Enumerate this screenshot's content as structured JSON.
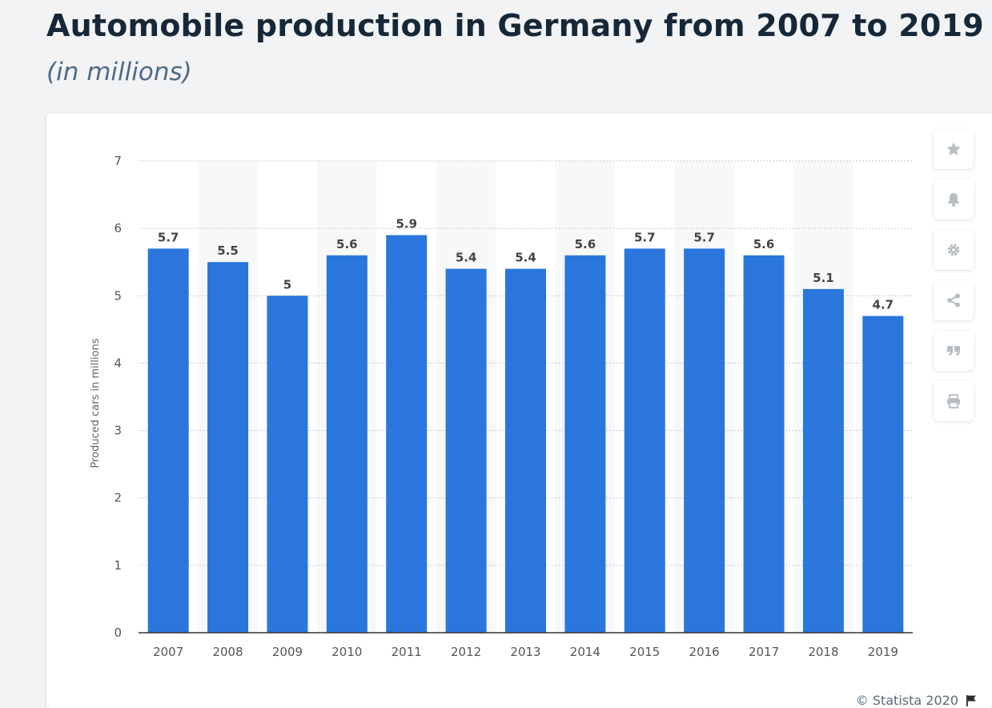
{
  "header": {
    "title": "Automobile production in Germany from 2007 to 2019",
    "subtitle": "(in millions)"
  },
  "toolbar": {
    "items": [
      {
        "icon": "star-icon"
      },
      {
        "icon": "bell-icon"
      },
      {
        "icon": "gear-icon"
      },
      {
        "icon": "share-icon"
      },
      {
        "icon": "quote-icon"
      },
      {
        "icon": "print-icon"
      }
    ]
  },
  "footer": {
    "credit": "© Statista 2020"
  },
  "colors": {
    "bar": "#2a76dd",
    "grid": "#c7c9cc",
    "band": "#f7f8fa",
    "axis": "#333333",
    "label": "#444444"
  },
  "chart_data": {
    "type": "bar",
    "categories": [
      "2007",
      "2008",
      "2009",
      "2010",
      "2011",
      "2012",
      "2013",
      "2014",
      "2015",
      "2016",
      "2017",
      "2018",
      "2019"
    ],
    "values": [
      5.7,
      5.5,
      5,
      5.6,
      5.9,
      5.4,
      5.4,
      5.6,
      5.7,
      5.7,
      5.6,
      5.1,
      4.7
    ],
    "value_labels": [
      "5.7",
      "5.5",
      "5",
      "5.6",
      "5.9",
      "5.4",
      "5.4",
      "5.6",
      "5.7",
      "5.7",
      "5.6",
      "5.1",
      "4.7"
    ],
    "ylabel": "Produced cars in millions",
    "xlabel": "",
    "ylim": [
      0,
      7
    ],
    "yticks": [
      0,
      1,
      2,
      3,
      4,
      5,
      6,
      7
    ],
    "grid": true,
    "legend": "none"
  }
}
